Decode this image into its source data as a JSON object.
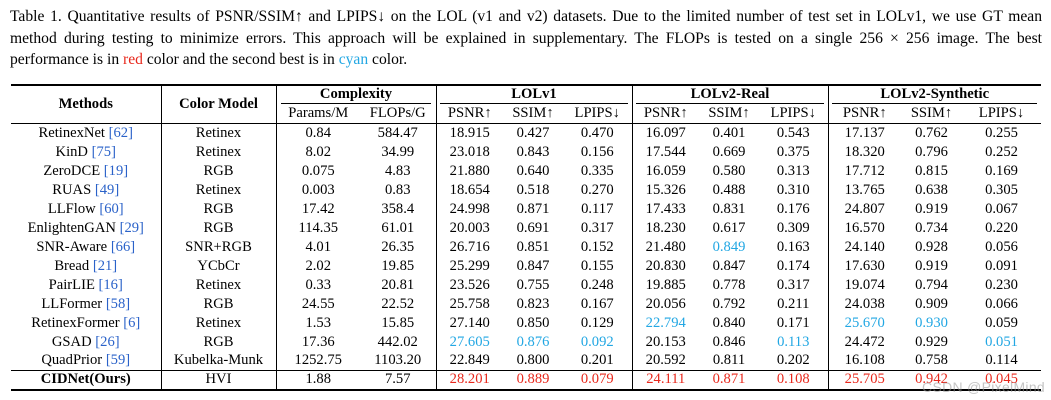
{
  "caption": {
    "part1": "Table 1. Quantitative results of PSNR/SSIM↑ and LPIPS↓ on the LOL (v1 and v2) datasets. Due to the limited number of test set in LOLv1, we use GT mean method during testing to minimize errors. This approach will be explained in supplementary. The FLOPs is tested on a single 256 × 256 image. The best performance is in ",
    "red_word": "red",
    "part2": " color and the second best is in ",
    "cyan_word": "cyan",
    "part3": " color."
  },
  "header": {
    "methods": "Methods",
    "color_model": "Color Model",
    "complexity": "Complexity",
    "lolv1": "LOLv1",
    "lolv2_real": "LOLv2-Real",
    "lolv2_syn": "LOLv2-Synthetic",
    "params": "Params/M",
    "flops": "FLOPs/G",
    "psnr": "PSNR↑",
    "ssim": "SSIM↑",
    "lpips": "LPIPS↓"
  },
  "colors": {
    "best": "#e8281c",
    "second": "#22a7e3",
    "citation": "#2a62c9"
  },
  "rows": [
    {
      "name": "RetinexNet",
      "cite": "[62]",
      "model": "Retinex",
      "params": "0.84",
      "flops": "584.47",
      "v": [
        "18.915",
        "0.427",
        "0.470",
        "16.097",
        "0.401",
        "0.543",
        "17.137",
        "0.762",
        "0.255"
      ],
      "c": [
        "",
        "",
        "",
        "",
        "",
        "",
        "",
        "",
        ""
      ]
    },
    {
      "name": "KinD",
      "cite": "[75]",
      "model": "Retinex",
      "params": "8.02",
      "flops": "34.99",
      "v": [
        "23.018",
        "0.843",
        "0.156",
        "17.544",
        "0.669",
        "0.375",
        "18.320",
        "0.796",
        "0.252"
      ],
      "c": [
        "",
        "",
        "",
        "",
        "",
        "",
        "",
        "",
        ""
      ]
    },
    {
      "name": "ZeroDCE",
      "cite": "[19]",
      "model": "RGB",
      "params": "0.075",
      "flops": "4.83",
      "v": [
        "21.880",
        "0.640",
        "0.335",
        "16.059",
        "0.580",
        "0.313",
        "17.712",
        "0.815",
        "0.169"
      ],
      "c": [
        "",
        "",
        "",
        "",
        "",
        "",
        "",
        "",
        ""
      ]
    },
    {
      "name": "RUAS",
      "cite": "[49]",
      "model": "Retinex",
      "params": "0.003",
      "flops": "0.83",
      "v": [
        "18.654",
        "0.518",
        "0.270",
        "15.326",
        "0.488",
        "0.310",
        "13.765",
        "0.638",
        "0.305"
      ],
      "c": [
        "",
        "",
        "",
        "",
        "",
        "",
        "",
        "",
        ""
      ]
    },
    {
      "name": "LLFlow",
      "cite": "[60]",
      "model": "RGB",
      "params": "17.42",
      "flops": "358.4",
      "v": [
        "24.998",
        "0.871",
        "0.117",
        "17.433",
        "0.831",
        "0.176",
        "24.807",
        "0.919",
        "0.067"
      ],
      "c": [
        "",
        "",
        "",
        "",
        "",
        "",
        "",
        "",
        ""
      ]
    },
    {
      "name": "EnlightenGAN",
      "cite": "[29]",
      "model": "RGB",
      "params": "114.35",
      "flops": "61.01",
      "v": [
        "20.003",
        "0.691",
        "0.317",
        "18.230",
        "0.617",
        "0.309",
        "16.570",
        "0.734",
        "0.220"
      ],
      "c": [
        "",
        "",
        "",
        "",
        "",
        "",
        "",
        "",
        ""
      ]
    },
    {
      "name": "SNR-Aware",
      "cite": "[66]",
      "model": "SNR+RGB",
      "params": "4.01",
      "flops": "26.35",
      "v": [
        "26.716",
        "0.851",
        "0.152",
        "21.480",
        "0.849",
        "0.163",
        "24.140",
        "0.928",
        "0.056"
      ],
      "c": [
        "",
        "",
        "",
        "",
        "second",
        "",
        "",
        "",
        ""
      ]
    },
    {
      "name": "Bread",
      "cite": "[21]",
      "model": "YCbCr",
      "params": "2.02",
      "flops": "19.85",
      "v": [
        "25.299",
        "0.847",
        "0.155",
        "20.830",
        "0.847",
        "0.174",
        "17.630",
        "0.919",
        "0.091"
      ],
      "c": [
        "",
        "",
        "",
        "",
        "",
        "",
        "",
        "",
        ""
      ]
    },
    {
      "name": "PairLIE",
      "cite": "[16]",
      "model": "Retinex",
      "params": "0.33",
      "flops": "20.81",
      "v": [
        "23.526",
        "0.755",
        "0.248",
        "19.885",
        "0.778",
        "0.317",
        "19.074",
        "0.794",
        "0.230"
      ],
      "c": [
        "",
        "",
        "",
        "",
        "",
        "",
        "",
        "",
        ""
      ]
    },
    {
      "name": "LLFormer",
      "cite": "[58]",
      "model": "RGB",
      "params": "24.55",
      "flops": "22.52",
      "v": [
        "25.758",
        "0.823",
        "0.167",
        "20.056",
        "0.792",
        "0.211",
        "24.038",
        "0.909",
        "0.066"
      ],
      "c": [
        "",
        "",
        "",
        "",
        "",
        "",
        "",
        "",
        ""
      ]
    },
    {
      "name": "RetinexFormer",
      "cite": "[6]",
      "model": "Retinex",
      "params": "1.53",
      "flops": "15.85",
      "v": [
        "27.140",
        "0.850",
        "0.129",
        "22.794",
        "0.840",
        "0.171",
        "25.670",
        "0.930",
        "0.059"
      ],
      "c": [
        "",
        "",
        "",
        "second",
        "",
        "",
        "second",
        "second",
        ""
      ]
    },
    {
      "name": "GSAD",
      "cite": "[26]",
      "model": "RGB",
      "params": "17.36",
      "flops": "442.02",
      "v": [
        "27.605",
        "0.876",
        "0.092",
        "20.153",
        "0.846",
        "0.113",
        "24.472",
        "0.929",
        "0.051"
      ],
      "c": [
        "second",
        "second",
        "second",
        "",
        "",
        "second",
        "",
        "",
        "second"
      ]
    },
    {
      "name": "QuadPrior",
      "cite": "[59]",
      "model": "Kubelka-Munk",
      "params": "1252.75",
      "flops": "1103.20",
      "v": [
        "22.849",
        "0.800",
        "0.201",
        "20.592",
        "0.811",
        "0.202",
        "16.108",
        "0.758",
        "0.114"
      ],
      "c": [
        "",
        "",
        "",
        "",
        "",
        "",
        "",
        "",
        ""
      ]
    },
    {
      "name": "CIDNet(Ours)",
      "cite": "",
      "model": "HVI",
      "params": "1.88",
      "flops": "7.57",
      "v": [
        "28.201",
        "0.889",
        "0.079",
        "24.111",
        "0.871",
        "0.108",
        "25.705",
        "0.942",
        "0.045"
      ],
      "c": [
        "best",
        "best",
        "best",
        "best",
        "best",
        "best",
        "best",
        "best",
        "best"
      ]
    }
  ],
  "watermark": "CSDN @PixelMind"
}
